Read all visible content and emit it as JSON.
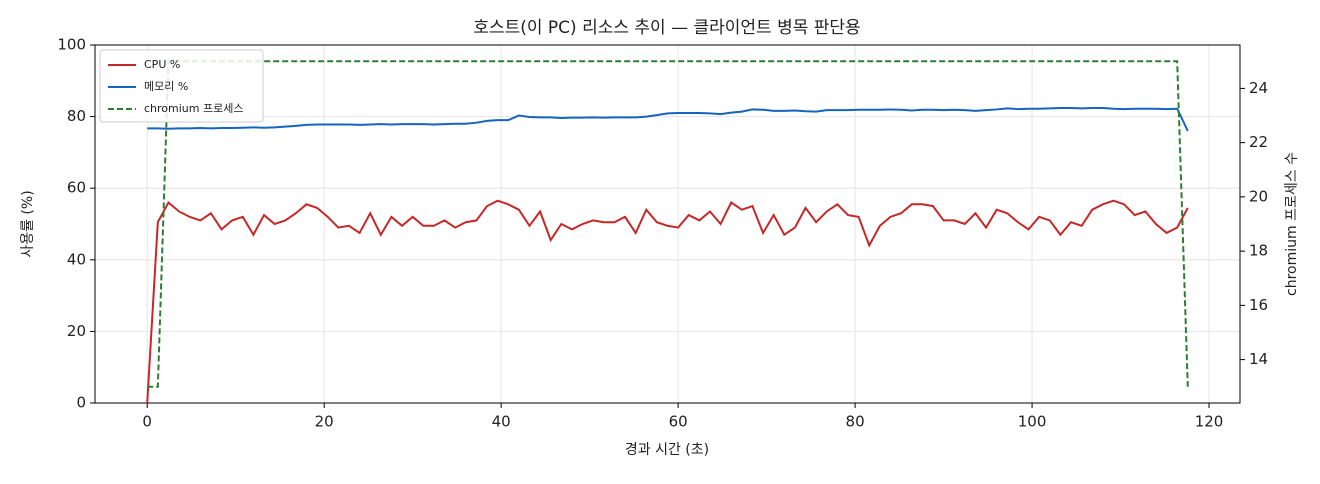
{
  "chart_data": {
    "type": "line",
    "title": "호스트(이 PC) 리소스 추이 — 클라이언트 병목 판단용",
    "xlabel": "경과 시간 (초)",
    "ylabel": "사용률 (%)",
    "y2label": "chromium 프로세스 수",
    "x": [
      0,
      1.2,
      2.4,
      3.6,
      4.8,
      6,
      7.2,
      8.4,
      9.6,
      10.8,
      12,
      13.2,
      14.4,
      15.6,
      16.8,
      18,
      19.2,
      20.4,
      21.6,
      22.8,
      24,
      25.2,
      26.4,
      27.6,
      28.8,
      30,
      31.2,
      32.4,
      33.6,
      34.8,
      36,
      37.2,
      38.4,
      39.6,
      40.8,
      42,
      43.2,
      44.4,
      45.6,
      46.8,
      48,
      49.2,
      50.4,
      51.6,
      52.8,
      54,
      55.2,
      56.4,
      57.6,
      58.8,
      60,
      61.2,
      62.4,
      63.6,
      64.8,
      66,
      67.2,
      68.4,
      69.6,
      70.8,
      72,
      73.2,
      74.4,
      75.6,
      76.8,
      78,
      79.2,
      80.4,
      81.6,
      82.8,
      84,
      85.2,
      86.4,
      87.6,
      88.8,
      90,
      91.2,
      92.4,
      93.6,
      94.8,
      96,
      97.2,
      98.4,
      99.6,
      100.8,
      102,
      103.2,
      104.4,
      105.6,
      106.8,
      108,
      109.2,
      110.4,
      111.6,
      112.8,
      114,
      115.2,
      116.4,
      117.6
    ],
    "series": [
      {
        "name": "CPU %",
        "color": "#c62828",
        "dash": false,
        "values": [
          0,
          50.5,
          56,
          53.5,
          52,
          51,
          53,
          48.5,
          51,
          52,
          47,
          52.5,
          50,
          51,
          53,
          55.5,
          54.5,
          52,
          49,
          49.5,
          47.5,
          53,
          47,
          52,
          49.5,
          52,
          49.5,
          49.5,
          51,
          49,
          50.5,
          51,
          55,
          56.5,
          55.5,
          54,
          49.5,
          53.5,
          45.5,
          50,
          48.5,
          50,
          51,
          50.5,
          50.5,
          52,
          47.5,
          54,
          50.5,
          49.5,
          49,
          52.5,
          51,
          53.5,
          50,
          56,
          54,
          55,
          47.5,
          52.5,
          47,
          49,
          54.5,
          50.5,
          53.5,
          55.5,
          52.5,
          52,
          44,
          49.5,
          52,
          53,
          55.5,
          55.5,
          55,
          51,
          51,
          50,
          53,
          49,
          54,
          53,
          50.5,
          48.5,
          52,
          51,
          47,
          50.5,
          49.5,
          54,
          55.5,
          56.5,
          55.5,
          52.5,
          53.5,
          50,
          47.5,
          49,
          54.5
        ]
      },
      {
        "name": "메모리 %",
        "color": "#1565c0",
        "dash": false,
        "values": [
          76.7,
          76.7,
          76.6,
          76.7,
          76.7,
          76.8,
          76.7,
          76.8,
          76.8,
          76.9,
          77.0,
          76.9,
          77.0,
          77.2,
          77.4,
          77.7,
          77.8,
          77.8,
          77.8,
          77.8,
          77.7,
          77.8,
          77.9,
          77.8,
          77.9,
          77.9,
          77.9,
          77.8,
          77.9,
          78.0,
          78.0,
          78.3,
          78.8,
          79.0,
          79.0,
          80.3,
          79.9,
          79.8,
          79.8,
          79.6,
          79.7,
          79.7,
          79.8,
          79.7,
          79.8,
          79.8,
          79.8,
          80.0,
          80.4,
          80.9,
          81.0,
          81.0,
          81.0,
          80.9,
          80.7,
          81.1,
          81.4,
          82.0,
          81.9,
          81.6,
          81.6,
          81.7,
          81.5,
          81.4,
          81.8,
          81.8,
          81.8,
          81.9,
          81.9,
          81.9,
          82.0,
          81.9,
          81.7,
          81.9,
          81.9,
          81.8,
          81.9,
          81.8,
          81.6,
          81.8,
          82.0,
          82.3,
          82.1,
          82.2,
          82.2,
          82.3,
          82.4,
          82.4,
          82.3,
          82.4,
          82.4,
          82.2,
          82.1,
          82.2,
          82.2,
          82.2,
          82.1,
          82.2,
          76.0
        ]
      },
      {
        "name": "chromium 프로세스",
        "color": "#2e7d32",
        "dash": true,
        "axis": "y2",
        "values": [
          13,
          13,
          25,
          25,
          25,
          25,
          25,
          25,
          25,
          25,
          25,
          25,
          25,
          25,
          25,
          25,
          25,
          25,
          25,
          25,
          25,
          25,
          25,
          25,
          25,
          25,
          25,
          25,
          25,
          25,
          25,
          25,
          25,
          25,
          25,
          25,
          25,
          25,
          25,
          25,
          25,
          25,
          25,
          25,
          25,
          25,
          25,
          25,
          25,
          25,
          25,
          25,
          25,
          25,
          25,
          25,
          25,
          25,
          25,
          25,
          25,
          25,
          25,
          25,
          25,
          25,
          25,
          25,
          25,
          25,
          25,
          25,
          25,
          25,
          25,
          25,
          25,
          25,
          25,
          25,
          25,
          25,
          25,
          25,
          25,
          25,
          25,
          25,
          25,
          25,
          25,
          25,
          25,
          25,
          25,
          25,
          25,
          25,
          13
        ]
      }
    ],
    "xlim": [
      -5.9,
      123.5
    ],
    "xticks": [
      0,
      20,
      40,
      60,
      80,
      100,
      120
    ],
    "ylim": [
      0,
      100
    ],
    "yticks": [
      0,
      20,
      40,
      60,
      80,
      100
    ],
    "y2lim": [
      12.4,
      25.6
    ],
    "y2ticks": [
      14,
      16,
      18,
      20,
      22,
      24
    ],
    "grid": true,
    "legend": "upper-left"
  }
}
